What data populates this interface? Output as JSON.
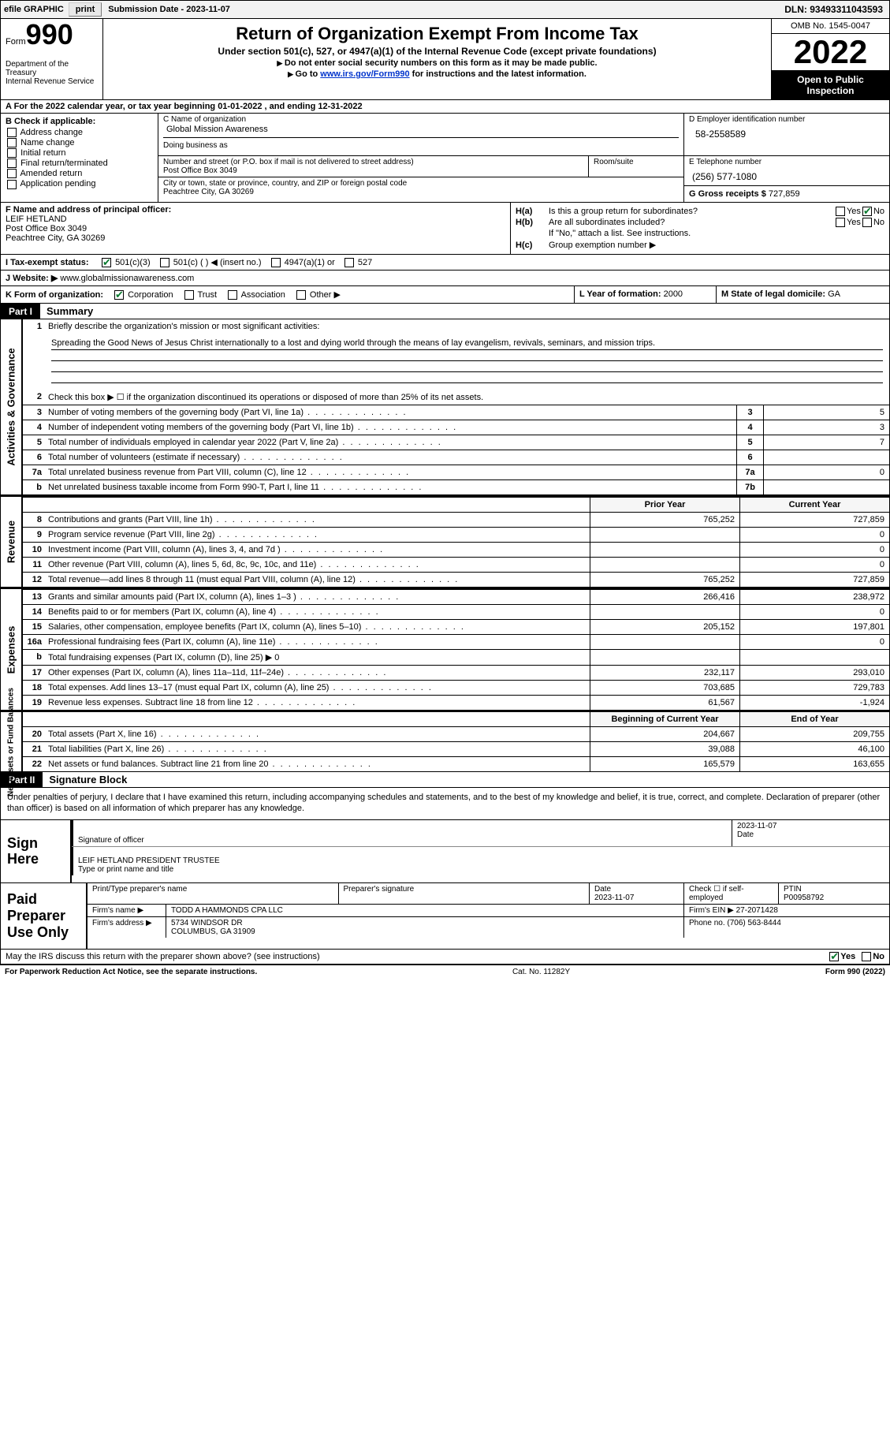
{
  "topbar": {
    "efile_label": "efile GRAPHIC",
    "print_btn": "print",
    "submission_label": "Submission Date - 2023-11-07",
    "dln_label": "DLN: 93493311043593"
  },
  "header": {
    "form_word": "Form",
    "form_number": "990",
    "dept": "Department of the Treasury\nInternal Revenue Service",
    "title": "Return of Organization Exempt From Income Tax",
    "subtitle1": "Under section 501(c), 527, or 4947(a)(1) of the Internal Revenue Code (except private foundations)",
    "subtitle2": "Do not enter social security numbers on this form as it may be made public.",
    "subtitle3_pre": "Go to ",
    "subtitle3_link": "www.irs.gov/Form990",
    "subtitle3_post": " for instructions and the latest information.",
    "omb": "OMB No. 1545-0047",
    "year": "2022",
    "inspect": "Open to Public Inspection"
  },
  "row_a": "A For the 2022 calendar year, or tax year beginning 01-01-2022   , and ending 12-31-2022",
  "col_b": {
    "hdr": "B Check if applicable:",
    "items": [
      "Address change",
      "Name change",
      "Initial return",
      "Final return/terminated",
      "Amended return",
      "Application pending"
    ]
  },
  "box_c": {
    "lbl1": "C Name of organization",
    "val1": "Global Mission Awareness",
    "lbl2": "Doing business as",
    "val2": ""
  },
  "box_d": {
    "lbl": "D Employer identification number",
    "val": "58-2558589"
  },
  "addr": {
    "street_lbl": "Number and street (or P.O. box if mail is not delivered to street address)",
    "street": "Post Office Box 3049",
    "suite_lbl": "Room/suite",
    "suite": "",
    "city_lbl": "City or town, state or province, country, and ZIP or foreign postal code",
    "city": "Peachtree City, GA  30269"
  },
  "box_e": {
    "tel_lbl": "E Telephone number",
    "tel": "(256) 577-1080",
    "gross_lbl": "G Gross receipts $",
    "gross": "727,859"
  },
  "box_f": {
    "lbl": "F Name and address of principal officer:",
    "name": "LEIF HETLAND",
    "addr1": "Post Office Box 3049",
    "addr2": "Peachtree City, GA  30269"
  },
  "box_h": {
    "ha_lbl": "H(a)",
    "ha_txt": "Is this a group return for subordinates?",
    "hb_lbl": "H(b)",
    "hb_txt": "Are all subordinates included?",
    "hb_note": "If \"No,\" attach a list. See instructions.",
    "hc_lbl": "H(c)",
    "hc_txt": "Group exemption number ▶",
    "yes": "Yes",
    "no": "No"
  },
  "row_i": {
    "lbl": "I  Tax-exempt status:",
    "opt1": "501(c)(3)",
    "opt2": "501(c) (  ) ◀ (insert no.)",
    "opt3": "4947(a)(1) or",
    "opt4": "527"
  },
  "row_j": {
    "lbl": "J  Website: ▶",
    "val": "www.globalmissionawareness.com"
  },
  "row_k": {
    "lbl": "K Form of organization:",
    "corp": "Corporation",
    "trust": "Trust",
    "assoc": "Association",
    "other": "Other ▶"
  },
  "box_l": {
    "lbl": "L Year of formation:",
    "val": "2000"
  },
  "box_m": {
    "lbl": "M State of legal domicile:",
    "val": "GA"
  },
  "part1": {
    "lbl": "Part I",
    "title": "Summary"
  },
  "mission": {
    "num": "1",
    "lbl": "Briefly describe the organization's mission or most significant activities:",
    "text": "Spreading the Good News of Jesus Christ internationally to a lost and dying world through the means of lay evangelism, revivals, seminars, and mission trips."
  },
  "line2": {
    "num": "2",
    "text": "Check this box ▶ ☐ if the organization discontinued its operations or disposed of more than 25% of its net assets."
  },
  "summary_lines": [
    {
      "num": "3",
      "desc": "Number of voting members of the governing body (Part VI, line 1a)",
      "box": "3",
      "val": "5"
    },
    {
      "num": "4",
      "desc": "Number of independent voting members of the governing body (Part VI, line 1b)",
      "box": "4",
      "val": "3"
    },
    {
      "num": "5",
      "desc": "Total number of individuals employed in calendar year 2022 (Part V, line 2a)",
      "box": "5",
      "val": "7"
    },
    {
      "num": "6",
      "desc": "Total number of volunteers (estimate if necessary)",
      "box": "6",
      "val": ""
    },
    {
      "num": "7a",
      "desc": "Total unrelated business revenue from Part VIII, column (C), line 12",
      "box": "7a",
      "val": "0"
    },
    {
      "num": "b",
      "desc": "Net unrelated business taxable income from Form 990-T, Part I, line 11",
      "box": "7b",
      "val": ""
    }
  ],
  "vtabs": {
    "gov": "Activities & Governance",
    "rev": "Revenue",
    "exp": "Expenses",
    "net": "Net Assets or Fund Balances"
  },
  "cols": {
    "prior": "Prior Year",
    "current": "Current Year",
    "beg": "Beginning of Current Year",
    "end": "End of Year"
  },
  "revenue": [
    {
      "num": "8",
      "desc": "Contributions and grants (Part VIII, line 1h)",
      "prior": "765,252",
      "cur": "727,859"
    },
    {
      "num": "9",
      "desc": "Program service revenue (Part VIII, line 2g)",
      "prior": "",
      "cur": "0"
    },
    {
      "num": "10",
      "desc": "Investment income (Part VIII, column (A), lines 3, 4, and 7d )",
      "prior": "",
      "cur": "0"
    },
    {
      "num": "11",
      "desc": "Other revenue (Part VIII, column (A), lines 5, 6d, 8c, 9c, 10c, and 11e)",
      "prior": "",
      "cur": "0"
    },
    {
      "num": "12",
      "desc": "Total revenue—add lines 8 through 11 (must equal Part VIII, column (A), line 12)",
      "prior": "765,252",
      "cur": "727,859"
    }
  ],
  "expenses": [
    {
      "num": "13",
      "desc": "Grants and similar amounts paid (Part IX, column (A), lines 1–3 )",
      "prior": "266,416",
      "cur": "238,972"
    },
    {
      "num": "14",
      "desc": "Benefits paid to or for members (Part IX, column (A), line 4)",
      "prior": "",
      "cur": "0"
    },
    {
      "num": "15",
      "desc": "Salaries, other compensation, employee benefits (Part IX, column (A), lines 5–10)",
      "prior": "205,152",
      "cur": "197,801"
    },
    {
      "num": "16a",
      "desc": "Professional fundraising fees (Part IX, column (A), line 11e)",
      "prior": "",
      "cur": "0"
    },
    {
      "num": "b",
      "desc": "Total fundraising expenses (Part IX, column (D), line 25) ▶ 0",
      "prior": "__shade__",
      "cur": "__shade__"
    },
    {
      "num": "17",
      "desc": "Other expenses (Part IX, column (A), lines 11a–11d, 11f–24e)",
      "prior": "232,117",
      "cur": "293,010"
    },
    {
      "num": "18",
      "desc": "Total expenses. Add lines 13–17 (must equal Part IX, column (A), line 25)",
      "prior": "703,685",
      "cur": "729,783"
    },
    {
      "num": "19",
      "desc": "Revenue less expenses. Subtract line 18 from line 12",
      "prior": "61,567",
      "cur": "-1,924"
    }
  ],
  "netassets": [
    {
      "num": "20",
      "desc": "Total assets (Part X, line 16)",
      "prior": "204,667",
      "cur": "209,755"
    },
    {
      "num": "21",
      "desc": "Total liabilities (Part X, line 26)",
      "prior": "39,088",
      "cur": "46,100"
    },
    {
      "num": "22",
      "desc": "Net assets or fund balances. Subtract line 21 from line 20",
      "prior": "165,579",
      "cur": "163,655"
    }
  ],
  "part2": {
    "lbl": "Part II",
    "title": "Signature Block"
  },
  "sig_text": "Under penalties of perjury, I declare that I have examined this return, including accompanying schedules and statements, and to the best of my knowledge and belief, it is true, correct, and complete. Declaration of preparer (other than officer) is based on all information of which preparer has any knowledge.",
  "sign": {
    "here": "Sign Here",
    "sig_lbl": "Signature of officer",
    "date": "2023-11-07",
    "date_lbl": "Date",
    "name": "LEIF HETLAND  PRESIDENT TRUSTEE",
    "name_lbl": "Type or print name and title"
  },
  "prep": {
    "here": "Paid Preparer Use Only",
    "name_lbl": "Print/Type preparer's name",
    "sig_lbl": "Preparer's signature",
    "date_lbl": "Date",
    "date": "2023-11-07",
    "check_lbl": "Check ☐ if self-employed",
    "ptin_lbl": "PTIN",
    "ptin": "P00958792",
    "firm_name_lbl": "Firm's name   ▶",
    "firm_name": "TODD A HAMMONDS CPA LLC",
    "firm_ein_lbl": "Firm's EIN ▶",
    "firm_ein": "27-2071428",
    "firm_addr_lbl": "Firm's address ▶",
    "firm_addr": "5734 WINDSOR DR\nCOLUMBUS, GA  31909",
    "phone_lbl": "Phone no.",
    "phone": "(706) 563-8444"
  },
  "discuss": {
    "text": "May the IRS discuss this return with the preparer shown above? (see instructions)",
    "yes": "Yes",
    "no": "No"
  },
  "footer": {
    "left": "For Paperwork Reduction Act Notice, see the separate instructions.",
    "mid": "Cat. No. 11282Y",
    "right": "Form 990 (2022)"
  }
}
